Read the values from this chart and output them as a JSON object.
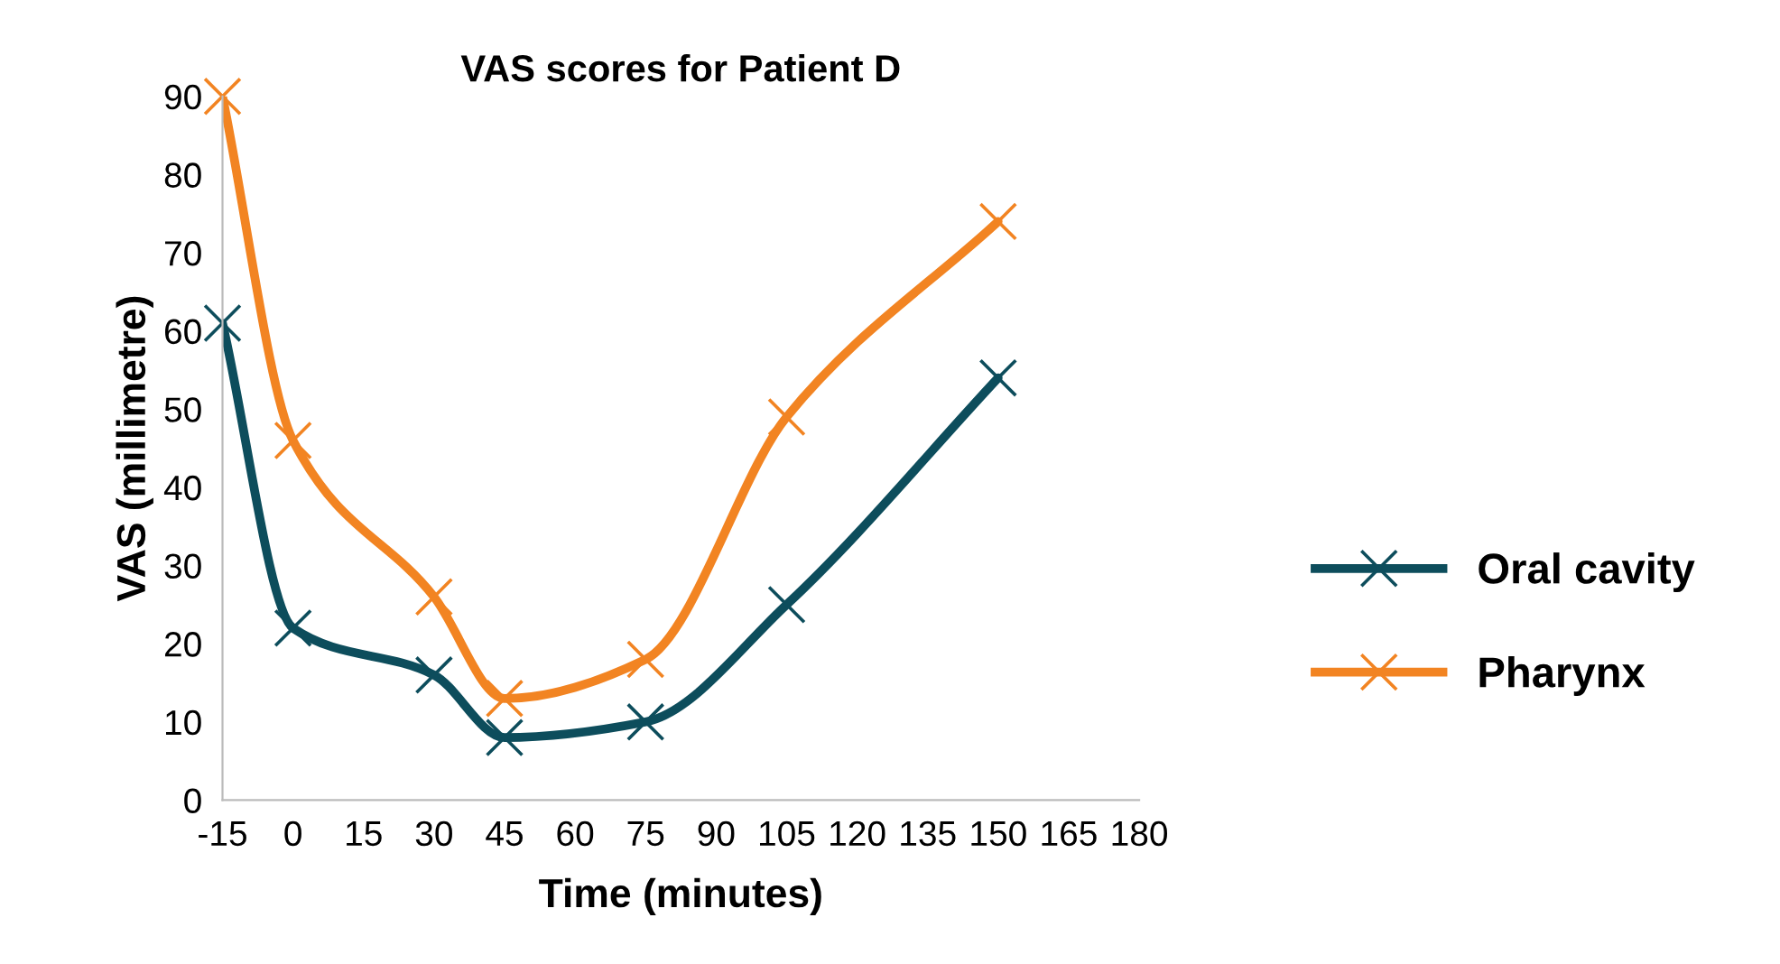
{
  "chart_data": {
    "type": "line",
    "title": "VAS scores for Patient D",
    "xlabel": "Time (minutes)",
    "ylabel": "VAS (millimetre)",
    "x": [
      -15,
      0,
      30,
      45,
      75,
      105,
      150
    ],
    "series": [
      {
        "name": "Oral cavity",
        "color": "#0d4d5c",
        "values": [
          61,
          22,
          16,
          8,
          10,
          25,
          54
        ]
      },
      {
        "name": "Pharynx",
        "color": "#f28422",
        "values": [
          90,
          46,
          26,
          13,
          18,
          49,
          74
        ]
      }
    ],
    "xlim": [
      -15,
      180
    ],
    "xticks": [
      -15,
      0,
      15,
      30,
      45,
      60,
      75,
      90,
      105,
      120,
      135,
      150,
      165,
      180
    ],
    "ylim": [
      0,
      90
    ],
    "yticks": [
      0,
      10,
      20,
      30,
      40,
      50,
      60,
      70,
      80,
      90
    ],
    "grid": false,
    "legend": "right",
    "marker": "cross",
    "line_style": "solid"
  }
}
